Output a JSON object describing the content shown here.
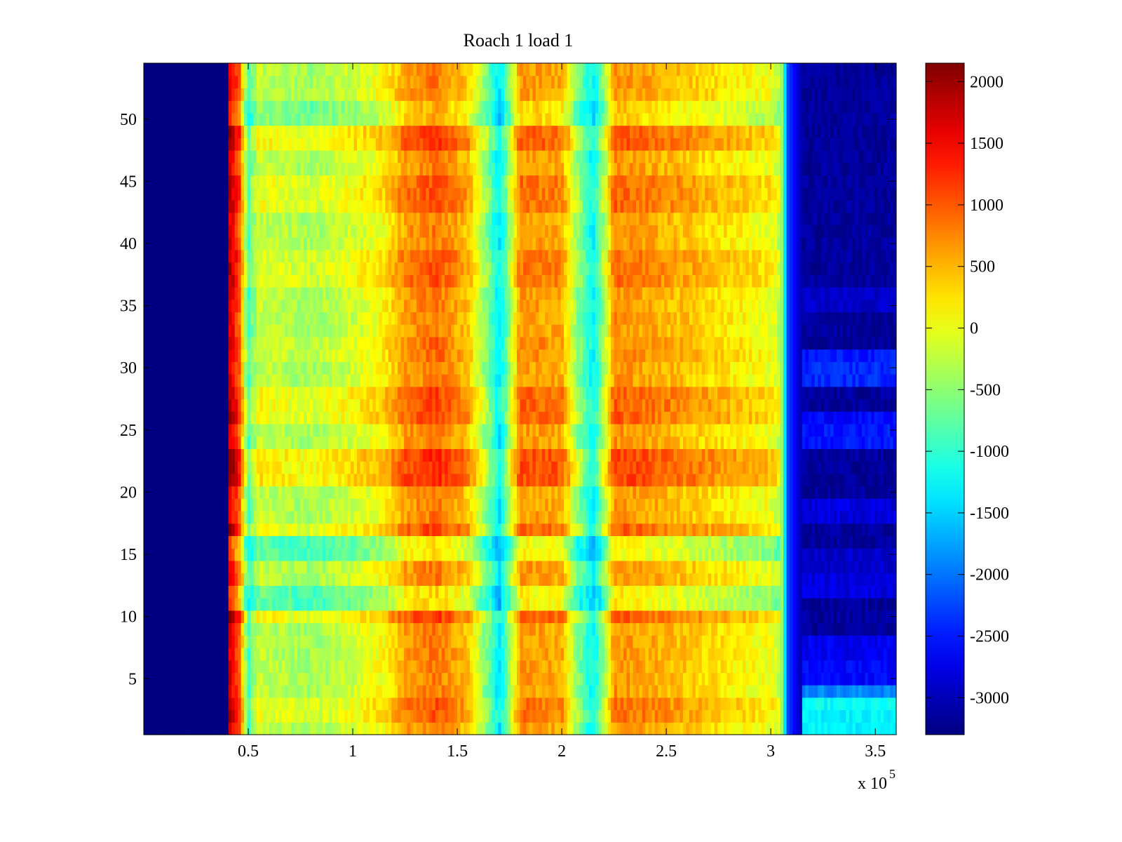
{
  "chart_data": {
    "type": "heatmap",
    "title": "Roach 1 load 1",
    "xlabel": "",
    "ylabel": "",
    "x_exponent_label": "x 10",
    "x_exponent_value": "5",
    "xlim": [
      0,
      3.6
    ],
    "ylim": [
      0.5,
      54.5
    ],
    "x_scale_multiplier": 100000,
    "x_ticks": [
      0.5,
      1,
      1.5,
      2,
      2.5,
      3,
      3.5
    ],
    "x_tick_labels": [
      "0.5",
      "1",
      "1.5",
      "2",
      "2.5",
      "3",
      "3.5"
    ],
    "y_ticks": [
      5,
      10,
      15,
      20,
      25,
      30,
      35,
      40,
      45,
      50
    ],
    "y_tick_labels": [
      "5",
      "10",
      "15",
      "20",
      "25",
      "30",
      "35",
      "40",
      "45",
      "50"
    ],
    "rows": 54,
    "colorbar": {
      "colormap": "jet",
      "clim": [
        -3300,
        2150
      ],
      "ticks": [
        2000,
        1500,
        1000,
        500,
        0,
        -500,
        -1000,
        -1500,
        -2000,
        -2500,
        -3000
      ],
      "tick_labels": [
        "2000",
        "1500",
        "1000",
        "500",
        "0",
        "-500",
        "-1000",
        "-1500",
        "-2000",
        "-2500",
        "-3000"
      ]
    },
    "column_profile": [
      {
        "x": 0.0,
        "value": -3300
      },
      {
        "x": 0.4,
        "value": -3300
      },
      {
        "x": 0.41,
        "value": 1700
      },
      {
        "x": 0.46,
        "value": 900
      },
      {
        "x": 0.5,
        "value": -900
      },
      {
        "x": 0.55,
        "value": -200
      },
      {
        "x": 0.8,
        "value": -400
      },
      {
        "x": 1.0,
        "value": -150
      },
      {
        "x": 1.15,
        "value": 100
      },
      {
        "x": 1.25,
        "value": 600
      },
      {
        "x": 1.4,
        "value": 850
      },
      {
        "x": 1.55,
        "value": 400
      },
      {
        "x": 1.65,
        "value": -700
      },
      {
        "x": 1.7,
        "value": -1400
      },
      {
        "x": 1.74,
        "value": -700
      },
      {
        "x": 1.8,
        "value": 650
      },
      {
        "x": 1.9,
        "value": 600
      },
      {
        "x": 2.0,
        "value": 550
      },
      {
        "x": 2.08,
        "value": -600
      },
      {
        "x": 2.15,
        "value": -1300
      },
      {
        "x": 2.2,
        "value": -500
      },
      {
        "x": 2.25,
        "value": 700
      },
      {
        "x": 2.5,
        "value": 500
      },
      {
        "x": 2.8,
        "value": 200
      },
      {
        "x": 3.0,
        "value": 0
      },
      {
        "x": 3.05,
        "value": -300
      },
      {
        "x": 3.08,
        "value": -2200
      },
      {
        "x": 3.15,
        "value": -3100
      },
      {
        "x": 3.6,
        "value": -3200
      }
    ],
    "row_profile": [
      {
        "y": 2.5,
        "offset": 200
      },
      {
        "y": 10.5,
        "offset": 350
      },
      {
        "y": 11.0,
        "offset": -500
      },
      {
        "y": 16.0,
        "offset": -550
      },
      {
        "y": 16.5,
        "offset": 300
      },
      {
        "y": 22.0,
        "offset": 450
      },
      {
        "y": 27.0,
        "offset": 300
      },
      {
        "y": 31.5,
        "offset": 100
      },
      {
        "y": 38.0,
        "offset": 200
      },
      {
        "y": 44.0,
        "offset": 250
      },
      {
        "y": 49.0,
        "offset": 350
      },
      {
        "y": 50.5,
        "offset": -300
      }
    ],
    "right_region_rows": [
      {
        "y": 1.5,
        "value": -1300
      },
      {
        "y": 2.5,
        "value": -1250
      },
      {
        "y": 3.5,
        "value": -1900
      },
      {
        "y": 5.5,
        "value": -2600
      },
      {
        "y": 7.5,
        "value": -2700
      },
      {
        "y": 12.5,
        "value": -2800
      },
      {
        "y": 14.5,
        "value": -2900
      },
      {
        "y": 18.5,
        "value": -2800
      },
      {
        "y": 24.5,
        "value": -2500
      },
      {
        "y": 25.5,
        "value": -2600
      },
      {
        "y": 29.5,
        "value": -2400
      },
      {
        "y": 30.5,
        "value": -2500
      },
      {
        "y": 35.5,
        "value": -2900
      }
    ]
  }
}
